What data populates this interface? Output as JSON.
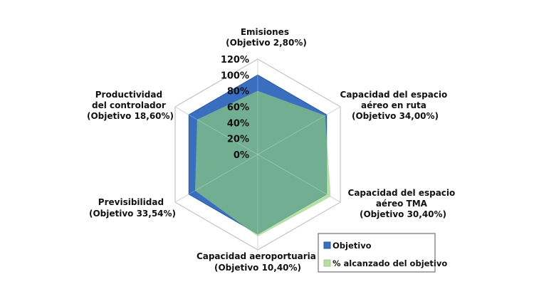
{
  "chart_data": {
    "type": "radar",
    "title": "",
    "axes": [
      {
        "name": "Emisiones",
        "target": "(Objetivo 2,80%)"
      },
      {
        "name": "Capacidad del espacio aéreo en ruta",
        "target": "(Objetivo 34,00%)"
      },
      {
        "name": "Capacidad del espacio aéreo TMA",
        "target": "(Objetivo 30,40%)"
      },
      {
        "name": "Capacidad aeroportuaria",
        "target": "(Objetivo 10,40%)"
      },
      {
        "name": "Previsibilidad",
        "target": "(Objetivo 33,54%)"
      },
      {
        "name": "Productividad del controlador",
        "target": "(Objetivo 18,60%)"
      }
    ],
    "ticks": [
      "0%",
      "20%",
      "40%",
      "60%",
      "80%",
      "100%",
      "120%"
    ],
    "range": [
      0,
      120
    ],
    "series": [
      {
        "name": "Objetivo",
        "values": [
          100,
          100,
          100,
          100,
          100,
          100
        ],
        "color": "#3a6fc0"
      },
      {
        "name": "% alcanzado del objetivo",
        "values": [
          80,
          98,
          106,
          103,
          91,
          88
        ],
        "color": "#8fcf7a"
      }
    ],
    "legend_position": "bottom-right"
  }
}
